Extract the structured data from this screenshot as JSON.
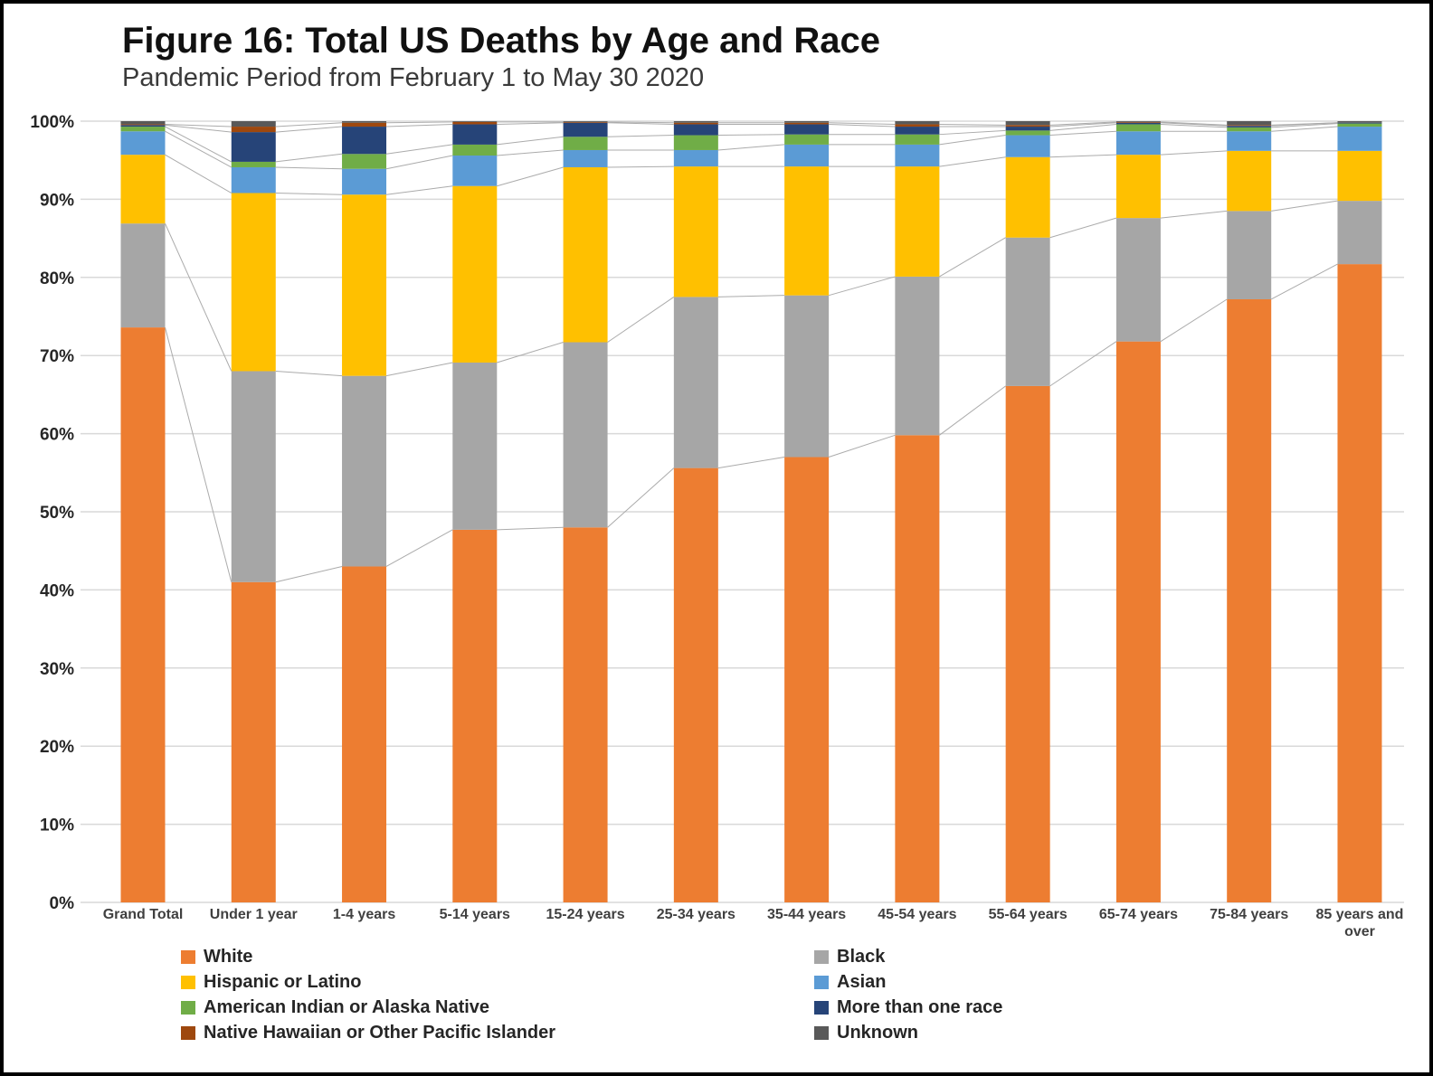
{
  "figure": {
    "title": "Figure 16: Total US Deaths by Age and Race",
    "subtitle": "Pandemic Period from February 1 to May 30 2020"
  },
  "chart_data": {
    "type": "bar",
    "stacked": true,
    "units": "percent",
    "title": "Figure 16: Total US Deaths by Age and Race",
    "subtitle": "Pandemic Period from February 1 to May 30 2020",
    "xlabel": "",
    "ylabel": "",
    "ylim": [
      0,
      100
    ],
    "yticks": [
      "0%",
      "10%",
      "20%",
      "30%",
      "40%",
      "50%",
      "60%",
      "70%",
      "80%",
      "90%",
      "100%"
    ],
    "grid": true,
    "connector_lines": true,
    "legend_position": "bottom",
    "categories": [
      "Grand Total",
      "Under 1 year",
      "1-4 years",
      "5-14 years",
      "15-24 years",
      "25-34 years",
      "35-44 years",
      "45-54 years",
      "55-64 years",
      "65-74 years",
      "75-84 years",
      "85 years and over"
    ],
    "series": [
      {
        "name": "White",
        "color": "#ED7D31",
        "values": [
          73.6,
          41.0,
          43.0,
          47.7,
          48.0,
          55.6,
          57.0,
          59.8,
          66.1,
          71.8,
          77.2,
          81.7
        ]
      },
      {
        "name": "Black",
        "color": "#A6A6A6",
        "values": [
          13.3,
          27.0,
          24.4,
          21.4,
          23.7,
          21.9,
          20.7,
          20.3,
          19.0,
          15.8,
          11.3,
          8.1
        ]
      },
      {
        "name": "Hispanic or Latino",
        "color": "#FFC000",
        "values": [
          8.8,
          22.8,
          23.2,
          22.6,
          22.4,
          16.7,
          16.5,
          14.1,
          10.3,
          8.1,
          7.7,
          6.4
        ]
      },
      {
        "name": "Asian",
        "color": "#5B9BD5",
        "values": [
          3.0,
          3.3,
          3.3,
          3.9,
          2.2,
          2.1,
          2.8,
          2.8,
          2.8,
          3.0,
          2.5,
          3.1
        ]
      },
      {
        "name": "American Indian or Alaska Native",
        "color": "#70AD47",
        "values": [
          0.6,
          0.7,
          1.9,
          1.4,
          1.7,
          1.9,
          1.3,
          1.3,
          0.6,
          0.9,
          0.5,
          0.4
        ]
      },
      {
        "name": "More than one race",
        "color": "#264478",
        "values": [
          0.2,
          3.8,
          3.5,
          2.6,
          1.8,
          1.4,
          1.3,
          1.0,
          0.5,
          0.2,
          0.2,
          0.1
        ]
      },
      {
        "name": "Native Hawaiian or Other Pacific Islander",
        "color": "#9E480E",
        "values": [
          0.1,
          0.7,
          0.5,
          0.3,
          0.1,
          0.2,
          0.2,
          0.3,
          0.2,
          0.1,
          0.1,
          0.0
        ]
      },
      {
        "name": "Unknown",
        "color": "#595959",
        "values": [
          0.4,
          0.7,
          0.2,
          0.1,
          0.1,
          0.2,
          0.2,
          0.4,
          0.5,
          0.1,
          0.5,
          0.2
        ]
      }
    ]
  },
  "legend": {
    "left_column": [
      "White",
      "Hispanic or Latino",
      "American Indian or Alaska Native",
      "Native Hawaiian or Other Pacific Islander"
    ],
    "right_column": [
      "Black",
      "Asian",
      "More than one race",
      "Unknown"
    ]
  }
}
